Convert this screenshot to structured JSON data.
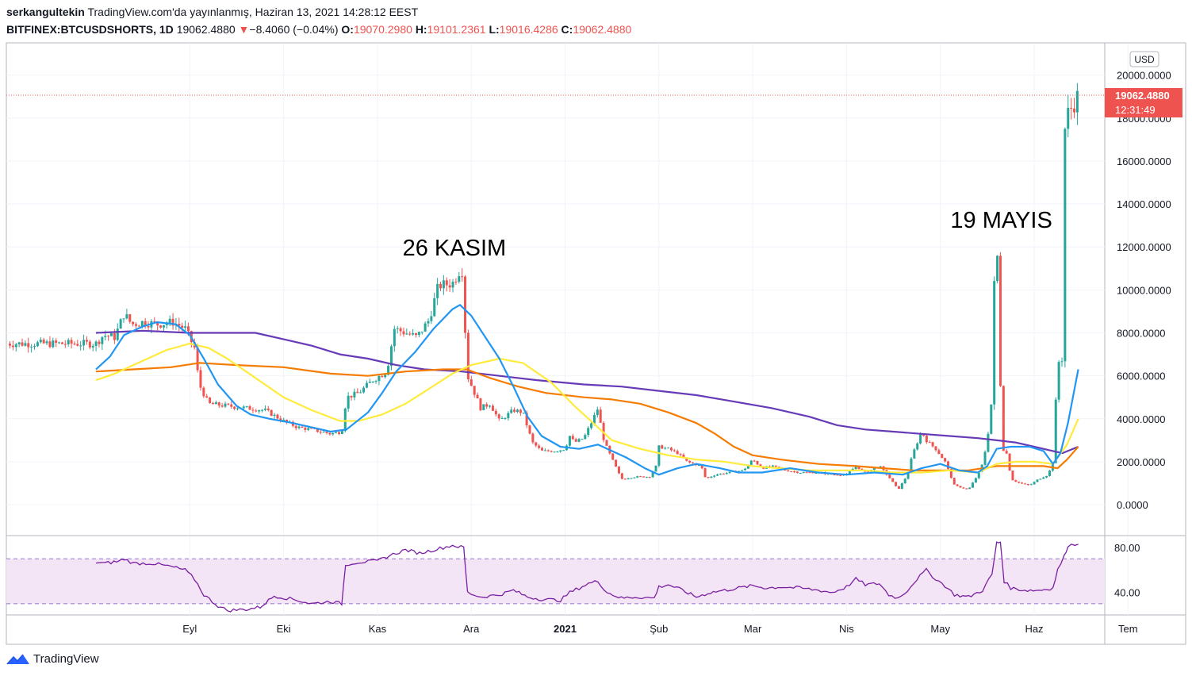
{
  "header": {
    "author": "serkangultekin",
    "published": "TradingView.com'da yayınlanmış, Haziran 13, 2021 14:28:12 EEST",
    "symbol": "BITFINEX:BTCUSDSHORTS, 1D",
    "last": "19062.4880",
    "change_arrow": "▼",
    "change": "−8.4060 (−0.04%)",
    "o_label": "O:",
    "o": "19070.2980",
    "h_label": "H:",
    "h": "19101.2361",
    "l_label": "L:",
    "l": "19016.4286",
    "c_label": "C:",
    "c": "19062.4880"
  },
  "brand": {
    "name": "TradingView",
    "icon": "tradingview-logo-icon"
  },
  "colors": {
    "up": "#26a69a",
    "down": "#ef5350",
    "ma_blue": "#2196f3",
    "ma_yellow": "#ffeb3b",
    "ma_orange": "#f57c00",
    "ma_purple": "#673ab7",
    "rsi": "#7b1fa2",
    "rsi_band": "#f3e5f5",
    "price_tag": "#ef5350"
  },
  "chart_data": {
    "type": "candlestick",
    "currency": "USD",
    "price_tag": {
      "value": "19062.4880",
      "timer": "12:31:49"
    },
    "y_ticks": [
      "20000.0000",
      "18000.0000",
      "16000.0000",
      "14000.0000",
      "12000.0000",
      "10000.0000",
      "8000.0000",
      "6000.0000",
      "4000.0000",
      "2000.0000",
      "0.0000"
    ],
    "ylim": [
      -1400,
      21500
    ],
    "x_ticks": [
      {
        "label": "Eyl",
        "month": 1
      },
      {
        "label": "Eki",
        "month": 2
      },
      {
        "label": "Kas",
        "month": 3
      },
      {
        "label": "Ara",
        "month": 4
      },
      {
        "label": "2021",
        "month": 5,
        "bold": true
      },
      {
        "label": "Şub",
        "month": 6
      },
      {
        "label": "Mar",
        "month": 7
      },
      {
        "label": "Nis",
        "month": 8
      },
      {
        "label": "May",
        "month": 9
      },
      {
        "label": "Haz",
        "month": 10
      },
      {
        "label": "Tem",
        "month": 11
      }
    ],
    "annotations": [
      {
        "text": "26 KASIM",
        "month": 3.82,
        "value": 11600
      },
      {
        "text": "19 MAYIS",
        "month": 9.65,
        "value": 12900
      }
    ],
    "price_keypoints": [
      [
        0.0,
        7500
      ],
      [
        0.08,
        7900
      ],
      [
        0.2,
        7800
      ],
      [
        0.3,
        8900
      ],
      [
        0.38,
        8400
      ],
      [
        0.5,
        8500
      ],
      [
        0.65,
        8400
      ],
      [
        0.82,
        8500
      ],
      [
        0.95,
        8200
      ],
      [
        1.05,
        7300
      ],
      [
        1.1,
        5600
      ],
      [
        1.2,
        4700
      ],
      [
        1.4,
        4600
      ],
      [
        1.6,
        4500
      ],
      [
        1.8,
        4400
      ],
      [
        2.0,
        3900
      ],
      [
        2.15,
        3600
      ],
      [
        2.3,
        3500
      ],
      [
        2.5,
        3300
      ],
      [
        2.62,
        3400
      ],
      [
        2.67,
        5000
      ],
      [
        2.8,
        5200
      ],
      [
        2.95,
        5800
      ],
      [
        3.1,
        6200
      ],
      [
        3.18,
        8200
      ],
      [
        3.3,
        8000
      ],
      [
        3.42,
        7800
      ],
      [
        3.55,
        8600
      ],
      [
        3.65,
        10200
      ],
      [
        3.8,
        10300
      ],
      [
        3.9,
        11100
      ],
      [
        3.96,
        6000
      ],
      [
        4.1,
        4500
      ],
      [
        4.2,
        4700
      ],
      [
        4.3,
        3900
      ],
      [
        4.45,
        4400
      ],
      [
        4.55,
        4300
      ],
      [
        4.65,
        2900
      ],
      [
        4.75,
        2500
      ],
      [
        4.9,
        2500
      ],
      [
        5.0,
        2600
      ],
      [
        5.05,
        3200
      ],
      [
        5.1,
        2900
      ],
      [
        5.2,
        3100
      ],
      [
        5.3,
        4000
      ],
      [
        5.35,
        4500
      ],
      [
        5.4,
        3200
      ],
      [
        5.45,
        2600
      ],
      [
        5.6,
        1200
      ],
      [
        5.75,
        1300
      ],
      [
        5.9,
        1300
      ],
      [
        5.97,
        1800
      ],
      [
        6.0,
        2700
      ],
      [
        6.1,
        2600
      ],
      [
        6.2,
        2400
      ],
      [
        6.3,
        2000
      ],
      [
        6.45,
        1800
      ],
      [
        6.5,
        1200
      ],
      [
        6.6,
        1400
      ],
      [
        6.75,
        1500
      ],
      [
        6.9,
        1600
      ],
      [
        7.0,
        2100
      ],
      [
        7.1,
        1700
      ],
      [
        7.2,
        1800
      ],
      [
        7.35,
        1600
      ],
      [
        7.5,
        1500
      ],
      [
        7.7,
        1500
      ],
      [
        7.85,
        1400
      ],
      [
        8.0,
        1400
      ],
      [
        8.1,
        1800
      ],
      [
        8.2,
        1500
      ],
      [
        8.35,
        1800
      ],
      [
        8.45,
        1300
      ],
      [
        8.55,
        700
      ],
      [
        8.65,
        1400
      ],
      [
        8.7,
        2300
      ],
      [
        8.8,
        3400
      ],
      [
        8.85,
        3000
      ],
      [
        8.95,
        2600
      ],
      [
        9.05,
        2000
      ],
      [
        9.15,
        900
      ],
      [
        9.3,
        700
      ],
      [
        9.4,
        1400
      ],
      [
        9.45,
        1900
      ],
      [
        9.5,
        3000
      ],
      [
        9.55,
        5000
      ],
      [
        9.58,
        11400
      ],
      [
        9.62,
        11600
      ],
      [
        9.65,
        2700
      ],
      [
        9.72,
        2300
      ],
      [
        9.75,
        1200
      ],
      [
        9.85,
        1000
      ],
      [
        9.95,
        900
      ],
      [
        10.05,
        1200
      ],
      [
        10.15,
        1400
      ],
      [
        10.2,
        2000
      ],
      [
        10.25,
        6600
      ],
      [
        10.3,
        6800
      ],
      [
        10.33,
        18000
      ],
      [
        10.4,
        18500
      ],
      [
        10.47,
        19062
      ]
    ],
    "ma_blue": [
      [
        0.0,
        6300
      ],
      [
        0.15,
        6900
      ],
      [
        0.3,
        7900
      ],
      [
        0.5,
        8300
      ],
      [
        0.65,
        8500
      ],
      [
        0.85,
        8400
      ],
      [
        1.0,
        7900
      ],
      [
        1.15,
        6800
      ],
      [
        1.3,
        5600
      ],
      [
        1.5,
        4600
      ],
      [
        1.65,
        4200
      ],
      [
        1.85,
        4000
      ],
      [
        2.1,
        3800
      ],
      [
        2.3,
        3600
      ],
      [
        2.5,
        3400
      ],
      [
        2.67,
        3500
      ],
      [
        2.9,
        4300
      ],
      [
        3.05,
        5200
      ],
      [
        3.2,
        6200
      ],
      [
        3.4,
        7100
      ],
      [
        3.6,
        8200
      ],
      [
        3.8,
        9100
      ],
      [
        3.88,
        9300
      ],
      [
        4.0,
        8800
      ],
      [
        4.15,
        7800
      ],
      [
        4.3,
        6800
      ],
      [
        4.45,
        5500
      ],
      [
        4.6,
        4100
      ],
      [
        4.75,
        3200
      ],
      [
        4.95,
        2700
      ],
      [
        5.15,
        2600
      ],
      [
        5.35,
        2800
      ],
      [
        5.5,
        2500
      ],
      [
        5.65,
        2200
      ],
      [
        5.85,
        1700
      ],
      [
        6.0,
        1400
      ],
      [
        6.2,
        1700
      ],
      [
        6.4,
        1900
      ],
      [
        6.65,
        1700
      ],
      [
        6.85,
        1500
      ],
      [
        7.1,
        1500
      ],
      [
        7.4,
        1700
      ],
      [
        7.7,
        1500
      ],
      [
        8.0,
        1400
      ],
      [
        8.3,
        1500
      ],
      [
        8.6,
        1400
      ],
      [
        8.8,
        1700
      ],
      [
        9.0,
        1900
      ],
      [
        9.2,
        1600
      ],
      [
        9.4,
        1500
      ],
      [
        9.5,
        1800
      ],
      [
        9.6,
        2600
      ],
      [
        9.75,
        2700
      ],
      [
        9.95,
        2700
      ],
      [
        10.1,
        2500
      ],
      [
        10.2,
        1900
      ],
      [
        10.28,
        2400
      ],
      [
        10.36,
        3800
      ],
      [
        10.47,
        6300
      ]
    ],
    "ma_yellow": [
      [
        0.0,
        5800
      ],
      [
        0.2,
        6100
      ],
      [
        0.45,
        6600
      ],
      [
        0.75,
        7200
      ],
      [
        1.0,
        7500
      ],
      [
        1.2,
        7300
      ],
      [
        1.4,
        6800
      ],
      [
        1.6,
        6200
      ],
      [
        1.8,
        5600
      ],
      [
        2.0,
        5000
      ],
      [
        2.3,
        4400
      ],
      [
        2.6,
        3900
      ],
      [
        2.8,
        3900
      ],
      [
        3.05,
        4200
      ],
      [
        3.3,
        4700
      ],
      [
        3.55,
        5400
      ],
      [
        3.8,
        6100
      ],
      [
        4.0,
        6500
      ],
      [
        4.3,
        6800
      ],
      [
        4.55,
        6600
      ],
      [
        4.85,
        5700
      ],
      [
        5.1,
        4600
      ],
      [
        5.3,
        3800
      ],
      [
        5.5,
        3000
      ],
      [
        5.8,
        2600
      ],
      [
        6.1,
        2300
      ],
      [
        6.4,
        2100
      ],
      [
        6.7,
        2000
      ],
      [
        7.0,
        1800
      ],
      [
        7.3,
        1700
      ],
      [
        7.6,
        1600
      ],
      [
        7.9,
        1600
      ],
      [
        8.2,
        1600
      ],
      [
        8.5,
        1500
      ],
      [
        8.8,
        1500
      ],
      [
        9.1,
        1600
      ],
      [
        9.4,
        1500
      ],
      [
        9.6,
        1900
      ],
      [
        9.8,
        2000
      ],
      [
        10.0,
        2000
      ],
      [
        10.2,
        1900
      ],
      [
        10.35,
        2800
      ],
      [
        10.47,
        4000
      ]
    ],
    "ma_orange": [
      [
        0.0,
        6200
      ],
      [
        0.4,
        6300
      ],
      [
        0.8,
        6400
      ],
      [
        1.1,
        6600
      ],
      [
        1.5,
        6500
      ],
      [
        2.0,
        6400
      ],
      [
        2.5,
        6100
      ],
      [
        2.9,
        6000
      ],
      [
        3.3,
        6200
      ],
      [
        3.7,
        6300
      ],
      [
        3.95,
        6300
      ],
      [
        4.2,
        5900
      ],
      [
        4.5,
        5500
      ],
      [
        4.8,
        5200
      ],
      [
        5.2,
        5000
      ],
      [
        5.5,
        4900
      ],
      [
        5.8,
        4700
      ],
      [
        6.1,
        4300
      ],
      [
        6.4,
        3800
      ],
      [
        6.6,
        3300
      ],
      [
        6.8,
        2700
      ],
      [
        7.0,
        2300
      ],
      [
        7.3,
        2100
      ],
      [
        7.7,
        1900
      ],
      [
        8.1,
        1800
      ],
      [
        8.4,
        1700
      ],
      [
        8.7,
        1600
      ],
      [
        9.0,
        1600
      ],
      [
        9.3,
        1600
      ],
      [
        9.6,
        1800
      ],
      [
        9.85,
        1800
      ],
      [
        10.1,
        1800
      ],
      [
        10.25,
        1700
      ],
      [
        10.35,
        2100
      ],
      [
        10.47,
        2700
      ]
    ],
    "ma_purple": [
      [
        0.0,
        8000
      ],
      [
        0.5,
        8100
      ],
      [
        1.0,
        8000
      ],
      [
        1.4,
        8000
      ],
      [
        1.7,
        8000
      ],
      [
        2.0,
        7700
      ],
      [
        2.3,
        7400
      ],
      [
        2.6,
        7000
      ],
      [
        2.9,
        6800
      ],
      [
        3.2,
        6500
      ],
      [
        3.5,
        6300
      ],
      [
        3.9,
        6200
      ],
      [
        4.3,
        6000
      ],
      [
        4.7,
        5800
      ],
      [
        5.2,
        5600
      ],
      [
        5.6,
        5500
      ],
      [
        6.0,
        5300
      ],
      [
        6.4,
        5100
      ],
      [
        6.8,
        4800
      ],
      [
        7.2,
        4500
      ],
      [
        7.6,
        4100
      ],
      [
        7.9,
        3700
      ],
      [
        8.2,
        3500
      ],
      [
        8.5,
        3400
      ],
      [
        8.8,
        3300
      ],
      [
        9.1,
        3200
      ],
      [
        9.4,
        3100
      ],
      [
        9.6,
        3000
      ],
      [
        9.8,
        2900
      ],
      [
        10.0,
        2700
      ],
      [
        10.2,
        2500
      ],
      [
        10.3,
        2400
      ],
      [
        10.47,
        2700
      ]
    ],
    "rsi": {
      "ticks": [
        "80.00",
        "40.00"
      ],
      "upper": 70,
      "lower": 30,
      "ylim": [
        20,
        90
      ],
      "points": [
        [
          0.0,
          67
        ],
        [
          0.1,
          66
        ],
        [
          0.25,
          68
        ],
        [
          0.3,
          70
        ],
        [
          0.4,
          66
        ],
        [
          0.6,
          66
        ],
        [
          0.8,
          63
        ],
        [
          0.95,
          60
        ],
        [
          1.05,
          52
        ],
        [
          1.15,
          38
        ],
        [
          1.3,
          28
        ],
        [
          1.4,
          24
        ],
        [
          1.6,
          25
        ],
        [
          1.75,
          27
        ],
        [
          1.9,
          37
        ],
        [
          2.1,
          34
        ],
        [
          2.3,
          30
        ],
        [
          2.5,
          32
        ],
        [
          2.62,
          30
        ],
        [
          2.66,
          65
        ],
        [
          2.8,
          67
        ],
        [
          3.0,
          68
        ],
        [
          3.1,
          72
        ],
        [
          3.2,
          75
        ],
        [
          3.3,
          78
        ],
        [
          3.45,
          75
        ],
        [
          3.6,
          78
        ],
        [
          3.8,
          82
        ],
        [
          3.92,
          80
        ],
        [
          3.96,
          40
        ],
        [
          4.1,
          36
        ],
        [
          4.3,
          38
        ],
        [
          4.45,
          42
        ],
        [
          4.6,
          36
        ],
        [
          4.75,
          34
        ],
        [
          4.95,
          33
        ],
        [
          5.05,
          40
        ],
        [
          5.15,
          44
        ],
        [
          5.25,
          48
        ],
        [
          5.35,
          50
        ],
        [
          5.45,
          40
        ],
        [
          5.6,
          35
        ],
        [
          5.75,
          36
        ],
        [
          5.95,
          35
        ],
        [
          6.0,
          45
        ],
        [
          6.1,
          47
        ],
        [
          6.25,
          42
        ],
        [
          6.4,
          36
        ],
        [
          6.55,
          40
        ],
        [
          6.7,
          42
        ],
        [
          6.85,
          44
        ],
        [
          7.0,
          46
        ],
        [
          7.15,
          44
        ],
        [
          7.3,
          45
        ],
        [
          7.5,
          44
        ],
        [
          7.7,
          42
        ],
        [
          7.85,
          40
        ],
        [
          8.0,
          45
        ],
        [
          8.1,
          52
        ],
        [
          8.2,
          47
        ],
        [
          8.35,
          48
        ],
        [
          8.45,
          38
        ],
        [
          8.55,
          35
        ],
        [
          8.65,
          42
        ],
        [
          8.75,
          52
        ],
        [
          8.85,
          60
        ],
        [
          8.95,
          52
        ],
        [
          9.05,
          46
        ],
        [
          9.15,
          38
        ],
        [
          9.3,
          36
        ],
        [
          9.45,
          42
        ],
        [
          9.55,
          56
        ],
        [
          9.6,
          84
        ],
        [
          9.64,
          85
        ],
        [
          9.68,
          50
        ],
        [
          9.75,
          44
        ],
        [
          9.9,
          42
        ],
        [
          10.05,
          42
        ],
        [
          10.2,
          44
        ],
        [
          10.25,
          60
        ],
        [
          10.32,
          72
        ],
        [
          10.36,
          82
        ],
        [
          10.47,
          83
        ]
      ]
    }
  }
}
